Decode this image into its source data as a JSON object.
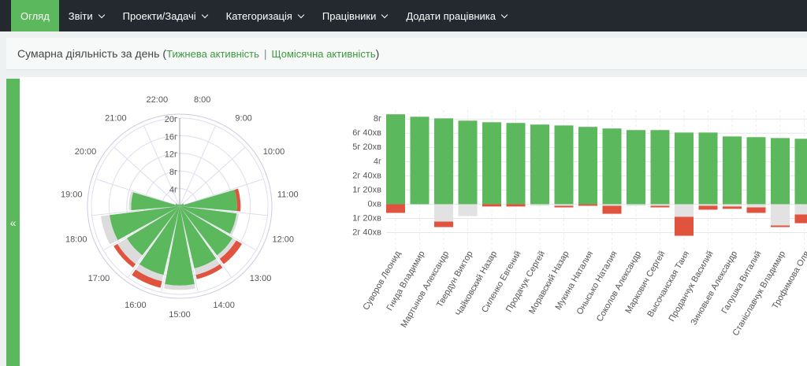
{
  "nav": {
    "items": [
      "Огляд",
      "Звіти",
      "Проекти/Задачі",
      "Категоризація",
      "Працівники",
      "Додати працівника"
    ],
    "active": 0
  },
  "header": {
    "title": "Сумарна діяльність за день",
    "open": "(",
    "links": [
      "Тижнева активність",
      "Щомісячна активність"
    ],
    "sep": "|",
    "close": ")"
  },
  "sidebar_toggle": "«",
  "chart_data": [
    {
      "type": "polar-bar",
      "categories": [
        "8:00",
        "9:00",
        "10:00",
        "11:00",
        "12:00",
        "13:00",
        "14:00",
        "15:00",
        "16:00",
        "17:00",
        "18:00",
        "19:00",
        "20:00",
        "21:00",
        "22:00"
      ],
      "series": [
        {
          "color": "#5cb85c",
          "values": [
            0.3,
            0.5,
            1,
            13,
            13,
            14,
            14.5,
            18,
            16,
            14,
            16,
            11,
            1,
            0.5,
            0.3
          ]
        },
        {
          "color": "#dcdcdc",
          "values": [
            0,
            0,
            0,
            0,
            0.5,
            1,
            1.5,
            1,
            1.5,
            2.5,
            2,
            0.5,
            0,
            0,
            0
          ]
        },
        {
          "color": "#e0533f",
          "values": [
            0,
            0,
            0,
            0.8,
            0,
            1.5,
            1,
            0,
            1.5,
            1,
            0,
            0,
            0,
            0,
            0
          ]
        }
      ],
      "ylim": [
        0,
        20
      ],
      "yticks": [
        {
          "value": 4,
          "label": "4г"
        },
        {
          "value": 8,
          "label": "8г"
        },
        {
          "value": 12,
          "label": "12г"
        },
        {
          "value": 16,
          "label": "16г"
        },
        {
          "value": 20,
          "label": "20г"
        }
      ],
      "grid": true
    },
    {
      "type": "bar",
      "categories": [
        "Суворов Леонид",
        "Гнида Владимир",
        "Мартынов Александр",
        "Твердун Виктор",
        "Чайковский Назар",
        "Силенко Евгений",
        "Продачук Сергей",
        "Моравский Назар",
        "Мукина Наталия",
        "Онысько Наталия",
        "Соколов Александр",
        "Маркович Сергей",
        "Высочанская Таня",
        "Проданчук Василий",
        "Зиновьев Александр",
        "Галушка Виталий",
        "Станіславчук Владимир",
        "Трофимова Оля"
      ],
      "series": [
        {
          "color": "#5cb85c",
          "values": [
            507,
            493,
            484,
            471,
            462,
            458,
            449,
            444,
            436,
            427,
            418,
            418,
            404,
            404,
            382,
            378,
            373,
            369
          ]
        },
        {
          "color": "#e2e2e2",
          "values": [
            0,
            0,
            -98,
            -67,
            0,
            0,
            -9,
            -9,
            0,
            -9,
            -9,
            -9,
            -71,
            -9,
            -13,
            -18,
            -120,
            -58
          ]
        },
        {
          "color": "#e0533f",
          "values": [
            -49,
            0,
            -31,
            0,
            -13,
            -13,
            0,
            -9,
            -9,
            -45,
            0,
            -9,
            -107,
            -22,
            -13,
            -31,
            -9,
            -49
          ]
        }
      ],
      "ylim": [
        -180,
        530
      ],
      "yticks": [
        {
          "value": 480,
          "label": "8г"
        },
        {
          "value": 400,
          "label": "6г 40хв"
        },
        {
          "value": 320,
          "label": "5г 20хв"
        },
        {
          "value": 240,
          "label": "4г"
        },
        {
          "value": 160,
          "label": "2г 40хв"
        },
        {
          "value": 80,
          "label": "1г 20хв"
        },
        {
          "value": 0,
          "label": "0хв"
        },
        {
          "value": -80,
          "label": "1г 20хв"
        },
        {
          "value": -160,
          "label": "2г 40хв"
        }
      ],
      "grid": true
    }
  ]
}
